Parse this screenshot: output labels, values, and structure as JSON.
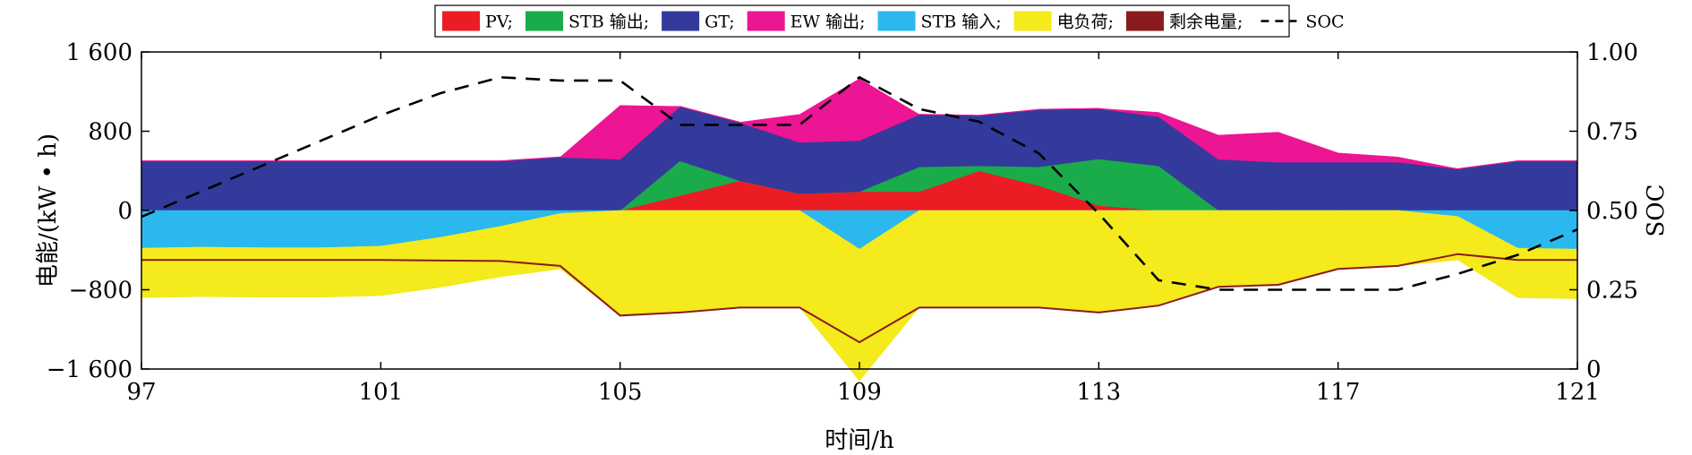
{
  "chart_data": {
    "type": "area",
    "xlabel": "时间/h",
    "ylabel_left": "电能/(kW • h)",
    "ylabel_right": "SOC",
    "xlim": [
      97,
      121
    ],
    "ylim_left": [
      -1600,
      1600
    ],
    "ylim_right": [
      0,
      1
    ],
    "x_ticks": [
      97,
      101,
      105,
      109,
      113,
      117,
      121
    ],
    "x_tick_labels": [
      "97",
      "101",
      "105",
      "109",
      "113",
      "117",
      "121"
    ],
    "y_left_ticks": [
      1600,
      800,
      0,
      -800,
      -1600
    ],
    "y_left_tick_labels": [
      "1 600",
      "800",
      "0",
      "−800",
      "−1 600"
    ],
    "y_right_ticks": [
      1.0,
      0.75,
      0.5,
      0.25,
      0
    ],
    "y_right_tick_labels": [
      "1.00",
      "0.75",
      "0.50",
      "0.25",
      "0"
    ],
    "x": [
      97,
      98,
      99,
      100,
      101,
      102,
      103,
      104,
      105,
      106,
      107,
      108,
      109,
      110,
      111,
      112,
      113,
      114,
      115,
      116,
      117,
      118,
      119,
      120,
      121
    ],
    "legend": [
      {
        "label": "PV;",
        "color": "#ec1c24",
        "kind": "patch"
      },
      {
        "label": "STB 输出;",
        "color": "#1aab4b",
        "kind": "patch"
      },
      {
        "label": "GT;",
        "color": "#333a9b",
        "kind": "patch"
      },
      {
        "label": "EW 输出;",
        "color": "#ec1593",
        "kind": "patch"
      },
      {
        "label": "STB 输入;",
        "color": "#2bb8ee",
        "kind": "patch"
      },
      {
        "label": "电负荷;",
        "color": "#f4ea1c",
        "kind": "patch"
      },
      {
        "label": "剩余电量;",
        "color": "#8a1b1e",
        "kind": "patch"
      },
      {
        "label": "SOC",
        "color": "#000000",
        "kind": "dash"
      }
    ],
    "positive_stack": [
      {
        "name": "PV",
        "color": "#ec1c24",
        "values": [
          0,
          0,
          0,
          0,
          0,
          0,
          0,
          0,
          0,
          150,
          300,
          170,
          190,
          190,
          400,
          250,
          50,
          0,
          0,
          0,
          0,
          0,
          0,
          0,
          0
        ]
      },
      {
        "name": "STB 输出",
        "color": "#1aab4b",
        "values": [
          0,
          0,
          0,
          0,
          0,
          0,
          0,
          0,
          0,
          350,
          0,
          0,
          0,
          250,
          50,
          190,
          470,
          450,
          0,
          0,
          0,
          0,
          0,
          0,
          0
        ]
      },
      {
        "name": "GT",
        "color": "#333a9b",
        "values": [
          500,
          500,
          500,
          500,
          500,
          500,
          500,
          540,
          520,
          550,
          590,
          520,
          520,
          530,
          510,
          580,
          510,
          500,
          520,
          490,
          490,
          490,
          420,
          500,
          500
        ]
      },
      {
        "name": "EW 输出",
        "color": "#ec1593",
        "values": [
          0,
          0,
          0,
          0,
          0,
          0,
          0,
          0,
          540,
          0,
          0,
          280,
          620,
          0,
          0,
          0,
          0,
          40,
          240,
          300,
          90,
          50,
          0,
          0,
          0
        ]
      }
    ],
    "negative_stack": [
      {
        "name": "STB 输入",
        "color": "#2bb8ee",
        "values": [
          -380,
          -370,
          -375,
          -375,
          -360,
          -270,
          -160,
          -30,
          0,
          0,
          0,
          0,
          -390,
          0,
          0,
          0,
          0,
          0,
          0,
          0,
          0,
          0,
          -60,
          -380,
          -390
        ]
      },
      {
        "name": "电负荷",
        "color": "#f4ea1c",
        "values": [
          -500,
          -500,
          -500,
          -500,
          -500,
          -505,
          -510,
          -560,
          -1060,
          -1030,
          -980,
          -980,
          -1330,
          -980,
          -980,
          -980,
          -1030,
          -960,
          -770,
          -750,
          -590,
          -560,
          -440,
          -500,
          -500
        ]
      }
    ],
    "residual": {
      "name": "剩余电量",
      "color": "#8a1b1e",
      "values": [
        -500,
        -500,
        -500,
        -500,
        -500,
        -505,
        -510,
        -560,
        -1060,
        -1030,
        -980,
        -980,
        -1330,
        -980,
        -980,
        -980,
        -1030,
        -960,
        -770,
        -750,
        -590,
        -560,
        -440,
        -500,
        -500
      ]
    },
    "soc": {
      "name": "SOC",
      "color": "#000000",
      "x": [
        97,
        98,
        99,
        100,
        101,
        102,
        103,
        104,
        105,
        106,
        107,
        108,
        109,
        110,
        111,
        112,
        113,
        114,
        115,
        116,
        117,
        118,
        119,
        120,
        121
      ],
      "values": [
        0.48,
        0.56,
        0.64,
        0.72,
        0.8,
        0.87,
        0.92,
        0.91,
        0.91,
        0.77,
        0.77,
        0.77,
        0.92,
        0.82,
        0.78,
        0.68,
        0.49,
        0.28,
        0.25,
        0.25,
        0.25,
        0.25,
        0.3,
        0.36,
        0.44
      ]
    }
  }
}
